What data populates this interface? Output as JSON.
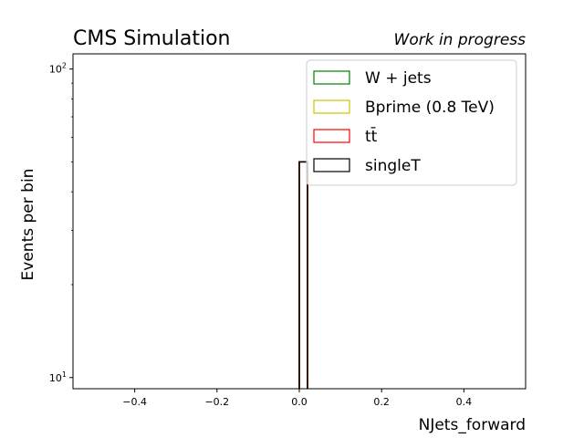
{
  "chart_data": {
    "type": "bar",
    "title_left": "CMS Simulation",
    "title_right": "Work in progress",
    "xlabel": "NJets_forward",
    "ylabel": "Events per bin",
    "xlim": [
      -0.55,
      0.55
    ],
    "ylim": [
      9.2,
      112
    ],
    "yscale": "log",
    "grid": false,
    "legend_position": "top-right",
    "x_ticks": [
      {
        "value": -0.4,
        "label": "−0.4"
      },
      {
        "value": -0.2,
        "label": "−0.2"
      },
      {
        "value": 0.0,
        "label": "0.0"
      },
      {
        "value": 0.2,
        "label": "0.2"
      },
      {
        "value": 0.4,
        "label": "0.4"
      }
    ],
    "y_major_ticks": [
      {
        "value": 10,
        "base": "10",
        "exp": "1"
      },
      {
        "value": 100,
        "base": "10",
        "exp": "2"
      }
    ],
    "y_minor_ticks": [
      20,
      30,
      40,
      50,
      60,
      70,
      80,
      90
    ],
    "bin": {
      "low": 0.0,
      "high": 0.02
    },
    "series": [
      {
        "name": "W + jets",
        "value": 50,
        "color": "#008000"
      },
      {
        "name": "Bprime (0.8 TeV)",
        "value": 50,
        "color": "#c8c800"
      },
      {
        "name": "tt̄",
        "value": 50,
        "color": "#ff0000"
      },
      {
        "name": "singleT",
        "value": 50,
        "color": "#000000"
      }
    ]
  }
}
